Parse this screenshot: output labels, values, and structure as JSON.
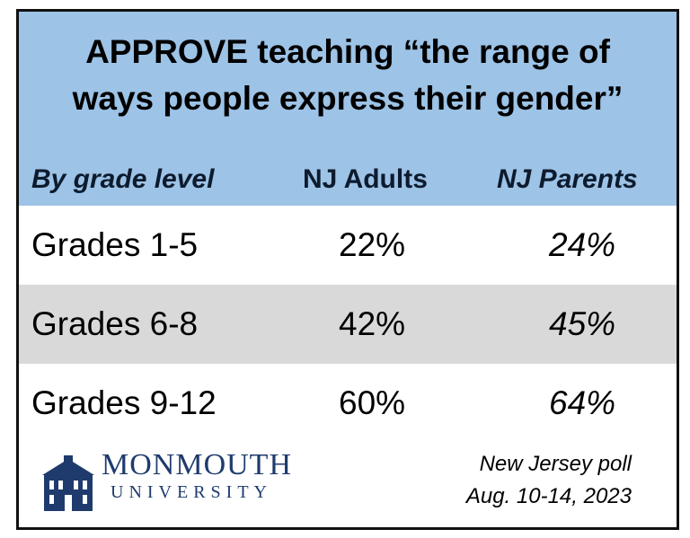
{
  "header": {
    "title_lines": [
      "APPROVE teaching “the range of",
      "ways people express their gender”"
    ]
  },
  "table": {
    "columns": [
      "By grade level",
      "NJ Adults",
      "NJ Parents"
    ],
    "rows": [
      [
        "Grades 1-5",
        "22%",
        "24%"
      ],
      [
        "Grades 6-8",
        "42%",
        "45%"
      ],
      [
        "Grades 9-12",
        "60%",
        "64%"
      ]
    ]
  },
  "footer": {
    "logo": [
      "MONMOUTH",
      "UNIVERSITY"
    ],
    "poll": [
      "New Jersey poll",
      "Aug. 10-14, 2023"
    ]
  }
}
